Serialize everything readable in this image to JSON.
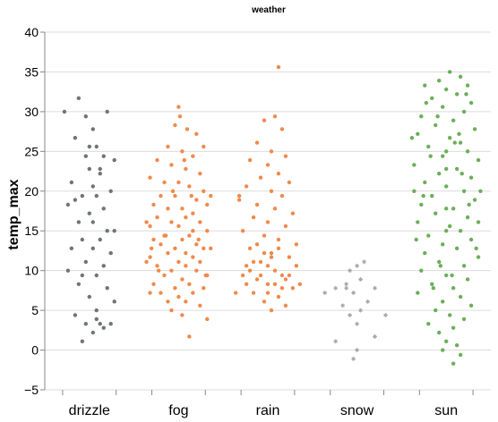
{
  "chart_data": {
    "type": "scatter",
    "title": "weather",
    "xlabel": "",
    "ylabel": "temp_max",
    "ylim": [
      -5,
      40
    ],
    "yticks": [
      -5,
      0,
      5,
      10,
      15,
      20,
      25,
      30,
      35,
      40
    ],
    "grid": true,
    "legend": "none",
    "categories": [
      "drizzle",
      "fog",
      "rain",
      "snow",
      "sun"
    ],
    "colors": {
      "drizzle": "#6e7672",
      "fog": "#f08a4b",
      "rain": "#f08a4b",
      "snow": "#a6a6a6",
      "sun": "#6cae5a"
    },
    "series": [
      {
        "category": "drizzle",
        "points": [
          [
            -0.35,
            30.0
          ],
          [
            -0.15,
            31.7
          ],
          [
            0.25,
            30.0
          ],
          [
            -0.2,
            26.7
          ],
          [
            0.1,
            25.6
          ],
          [
            0.35,
            23.9
          ],
          [
            0.2,
            24.4
          ],
          [
            -0.05,
            24.4
          ],
          [
            0.0,
            22.8
          ],
          [
            0.15,
            22.2
          ],
          [
            -0.25,
            21.1
          ],
          [
            0.05,
            20.6
          ],
          [
            0.3,
            20.0
          ],
          [
            -0.1,
            19.4
          ],
          [
            0.1,
            19.4
          ],
          [
            -0.3,
            18.3
          ],
          [
            0.2,
            17.8
          ],
          [
            0.0,
            17.2
          ],
          [
            -0.15,
            16.1
          ],
          [
            0.05,
            16.1
          ],
          [
            0.25,
            15.0
          ],
          [
            0.35,
            15.0
          ],
          [
            -0.1,
            13.9
          ],
          [
            0.15,
            13.9
          ],
          [
            -0.25,
            12.8
          ],
          [
            0.05,
            12.8
          ],
          [
            -0.05,
            11.1
          ],
          [
            0.2,
            10.6
          ],
          [
            -0.3,
            10.0
          ],
          [
            0.1,
            9.4
          ],
          [
            -0.15,
            8.3
          ],
          [
            0.25,
            7.8
          ],
          [
            0.0,
            6.7
          ],
          [
            0.35,
            6.1
          ],
          [
            -0.2,
            4.4
          ],
          [
            0.1,
            3.9
          ],
          [
            -0.05,
            3.3
          ],
          [
            0.15,
            3.3
          ],
          [
            0.3,
            3.3
          ],
          [
            0.05,
            2.2
          ],
          [
            -0.1,
            1.1
          ],
          [
            0.2,
            2.8
          ],
          [
            0.0,
            25.6
          ],
          [
            -0.05,
            29.4
          ],
          [
            0.05,
            27.8
          ],
          [
            0.15,
            22.8
          ],
          [
            -0.2,
            18.9
          ],
          [
            0.3,
            12.2
          ],
          [
            -0.1,
            9.4
          ],
          [
            0.1,
            5.0
          ]
        ]
      },
      {
        "category": "fog",
        "points": [
          [
            0.0,
            30.6
          ],
          [
            0.02,
            29.4
          ],
          [
            -0.05,
            28.3
          ],
          [
            0.12,
            27.8
          ],
          [
            0.25,
            27.2
          ],
          [
            0.35,
            25.6
          ],
          [
            -0.15,
            25.6
          ],
          [
            0.05,
            25.0
          ],
          [
            0.2,
            24.4
          ],
          [
            -0.3,
            23.9
          ],
          [
            -0.1,
            23.3
          ],
          [
            0.1,
            22.8
          ],
          [
            0.3,
            22.2
          ],
          [
            -0.4,
            21.7
          ],
          [
            -0.2,
            21.1
          ],
          [
            0.0,
            21.1
          ],
          [
            0.15,
            20.6
          ],
          [
            0.35,
            20.0
          ],
          [
            -0.25,
            19.4
          ],
          [
            -0.05,
            19.4
          ],
          [
            0.25,
            18.9
          ],
          [
            0.4,
            18.3
          ],
          [
            -0.35,
            18.3
          ],
          [
            -0.15,
            17.8
          ],
          [
            0.05,
            17.8
          ],
          [
            0.2,
            17.2
          ],
          [
            -0.3,
            16.7
          ],
          [
            0.1,
            16.7
          ],
          [
            0.3,
            16.1
          ],
          [
            -0.1,
            16.1
          ],
          [
            -0.4,
            15.6
          ],
          [
            0.0,
            15.6
          ],
          [
            0.2,
            15.0
          ],
          [
            0.4,
            15.0
          ],
          [
            -0.2,
            14.4
          ],
          [
            0.15,
            14.4
          ],
          [
            -0.35,
            13.9
          ],
          [
            0.05,
            13.9
          ],
          [
            0.25,
            13.3
          ],
          [
            -0.25,
            13.3
          ],
          [
            -0.05,
            12.8
          ],
          [
            0.35,
            12.8
          ],
          [
            0.1,
            12.2
          ],
          [
            -0.15,
            12.2
          ],
          [
            -0.4,
            11.7
          ],
          [
            0.2,
            11.7
          ],
          [
            0.0,
            11.1
          ],
          [
            0.3,
            11.1
          ],
          [
            -0.3,
            10.6
          ],
          [
            0.1,
            10.6
          ],
          [
            -0.1,
            10.0
          ],
          [
            0.25,
            10.0
          ],
          [
            0.4,
            9.4
          ],
          [
            -0.2,
            9.4
          ],
          [
            0.05,
            8.9
          ],
          [
            -0.35,
            8.3
          ],
          [
            0.15,
            8.3
          ],
          [
            0.35,
            7.8
          ],
          [
            -0.05,
            7.8
          ],
          [
            -0.25,
            7.2
          ],
          [
            0.2,
            7.2
          ],
          [
            0.0,
            6.7
          ],
          [
            -0.15,
            6.1
          ],
          [
            0.1,
            6.1
          ],
          [
            0.3,
            5.6
          ],
          [
            -0.1,
            5.0
          ],
          [
            0.05,
            4.4
          ],
          [
            0.4,
            3.9
          ],
          [
            0.15,
            1.7
          ],
          [
            -0.4,
            7.2
          ],
          [
            0.45,
            19.4
          ],
          [
            -0.45,
            11.1
          ],
          [
            0.45,
            12.8
          ],
          [
            -0.45,
            16.1
          ],
          [
            0.08,
            23.9
          ],
          [
            -0.08,
            20.0
          ],
          [
            0.18,
            19.4
          ],
          [
            -0.18,
            14.4
          ],
          [
            0.28,
            13.9
          ],
          [
            -0.28,
            10.0
          ],
          [
            0.38,
            9.4
          ],
          [
            -0.38,
            12.8
          ]
        ]
      },
      {
        "category": "rain",
        "points": [
          [
            0.15,
            35.6
          ],
          [
            0.1,
            29.4
          ],
          [
            -0.05,
            28.9
          ],
          [
            0.2,
            27.8
          ],
          [
            -0.15,
            26.1
          ],
          [
            0.05,
            25.0
          ],
          [
            0.25,
            24.4
          ],
          [
            -0.25,
            23.9
          ],
          [
            0.0,
            23.3
          ],
          [
            0.15,
            22.2
          ],
          [
            -0.1,
            21.7
          ],
          [
            0.3,
            21.1
          ],
          [
            -0.3,
            20.6
          ],
          [
            0.05,
            20.0
          ],
          [
            0.2,
            19.4
          ],
          [
            -0.4,
            18.9
          ],
          [
            -0.15,
            18.3
          ],
          [
            0.1,
            17.8
          ],
          [
            0.35,
            17.2
          ],
          [
            -0.2,
            16.7
          ],
          [
            0.0,
            16.1
          ],
          [
            0.25,
            15.6
          ],
          [
            -0.35,
            15.0
          ],
          [
            -0.05,
            14.4
          ],
          [
            0.15,
            13.9
          ],
          [
            0.4,
            13.3
          ],
          [
            -0.25,
            12.8
          ],
          [
            0.05,
            12.2
          ],
          [
            0.3,
            11.7
          ],
          [
            -0.1,
            11.1
          ],
          [
            -0.3,
            10.6
          ],
          [
            0.1,
            10.0
          ],
          [
            0.2,
            9.4
          ],
          [
            -0.15,
            8.9
          ],
          [
            0.0,
            8.3
          ],
          [
            0.35,
            7.8
          ],
          [
            -0.2,
            7.2
          ],
          [
            0.15,
            6.7
          ],
          [
            -0.05,
            6.1
          ],
          [
            0.25,
            5.6
          ],
          [
            0.05,
            5.0
          ],
          [
            -0.45,
            7.2
          ],
          [
            -0.4,
            19.4
          ],
          [
            0.45,
            8.3
          ],
          [
            -0.35,
            9.4
          ],
          [
            0.4,
            10.6
          ],
          [
            -0.3,
            8.3
          ],
          [
            0.3,
            9.4
          ],
          [
            -0.25,
            10.0
          ],
          [
            0.25,
            8.9
          ],
          [
            -0.2,
            11.1
          ],
          [
            0.2,
            7.8
          ],
          [
            -0.1,
            9.4
          ],
          [
            0.1,
            8.3
          ],
          [
            0.0,
            10.6
          ],
          [
            -0.05,
            12.2
          ],
          [
            0.05,
            11.7
          ],
          [
            0.15,
            12.8
          ],
          [
            -0.15,
            13.3
          ],
          [
            0.0,
            7.2
          ]
        ]
      },
      {
        "category": "snow",
        "points": [
          [
            0.1,
            11.1
          ],
          [
            0.0,
            10.6
          ],
          [
            -0.1,
            10.0
          ],
          [
            0.05,
            8.9
          ],
          [
            -0.15,
            8.3
          ],
          [
            -0.3,
            7.8
          ],
          [
            0.25,
            7.8
          ],
          [
            -0.05,
            7.2
          ],
          [
            -0.45,
            7.2
          ],
          [
            0.15,
            6.1
          ],
          [
            -0.2,
            5.6
          ],
          [
            0.05,
            5.0
          ],
          [
            -0.1,
            4.4
          ],
          [
            0.4,
            4.4
          ],
          [
            0.0,
            3.3
          ],
          [
            0.25,
            1.7
          ],
          [
            -0.3,
            1.1
          ],
          [
            0.0,
            0.0
          ],
          [
            -0.05,
            -1.1
          ],
          [
            -0.15,
            7.8
          ]
        ]
      },
      {
        "category": "sun",
        "points": [
          [
            0.05,
            35.0
          ],
          [
            0.2,
            34.4
          ],
          [
            -0.1,
            33.9
          ],
          [
            0.3,
            33.3
          ],
          [
            -0.3,
            33.3
          ],
          [
            0.0,
            32.8
          ],
          [
            0.15,
            32.2
          ],
          [
            -0.2,
            31.7
          ],
          [
            0.35,
            31.1
          ],
          [
            -0.05,
            30.6
          ],
          [
            0.25,
            30.0
          ],
          [
            -0.35,
            29.4
          ],
          [
            0.1,
            28.9
          ],
          [
            -0.15,
            28.3
          ],
          [
            0.4,
            27.8
          ],
          [
            -0.4,
            27.2
          ],
          [
            0.05,
            26.7
          ],
          [
            0.2,
            26.1
          ],
          [
            -0.25,
            25.6
          ],
          [
            0.3,
            25.0
          ],
          [
            -0.05,
            24.4
          ],
          [
            0.45,
            23.9
          ],
          [
            -0.45,
            23.3
          ],
          [
            0.15,
            22.8
          ],
          [
            -0.1,
            22.2
          ],
          [
            0.35,
            21.7
          ],
          [
            -0.3,
            21.1
          ],
          [
            0.0,
            20.6
          ],
          [
            0.25,
            20.0
          ],
          [
            -0.2,
            19.4
          ],
          [
            0.4,
            18.9
          ],
          [
            -0.35,
            18.3
          ],
          [
            0.1,
            17.8
          ],
          [
            -0.15,
            17.2
          ],
          [
            0.3,
            16.7
          ],
          [
            -0.4,
            16.1
          ],
          [
            0.05,
            15.6
          ],
          [
            0.2,
            15.0
          ],
          [
            -0.25,
            14.4
          ],
          [
            0.35,
            13.9
          ],
          [
            -0.05,
            13.3
          ],
          [
            0.15,
            12.8
          ],
          [
            -0.3,
            12.2
          ],
          [
            0.45,
            11.7
          ],
          [
            -0.1,
            11.1
          ],
          [
            0.25,
            10.6
          ],
          [
            -0.35,
            10.0
          ],
          [
            0.0,
            9.4
          ],
          [
            0.3,
            8.9
          ],
          [
            -0.2,
            8.3
          ],
          [
            0.1,
            7.8
          ],
          [
            -0.4,
            7.2
          ],
          [
            0.2,
            6.7
          ],
          [
            -0.05,
            6.1
          ],
          [
            0.35,
            5.6
          ],
          [
            -0.15,
            5.0
          ],
          [
            0.05,
            4.4
          ],
          [
            0.25,
            3.9
          ],
          [
            -0.25,
            3.3
          ],
          [
            0.1,
            2.8
          ],
          [
            -0.1,
            2.2
          ],
          [
            0.0,
            1.1
          ],
          [
            0.15,
            0.6
          ],
          [
            -0.05,
            0.0
          ],
          [
            0.2,
            -0.6
          ],
          [
            0.1,
            -1.7
          ],
          [
            -0.45,
            20.0
          ],
          [
            0.48,
            20.0
          ],
          [
            -0.48,
            26.7
          ],
          [
            0.45,
            16.1
          ],
          [
            -0.12,
            29.4
          ],
          [
            0.12,
            26.1
          ],
          [
            -0.22,
            24.4
          ],
          [
            0.22,
            22.2
          ],
          [
            -0.32,
            19.4
          ],
          [
            0.32,
            18.3
          ],
          [
            -0.42,
            13.9
          ],
          [
            0.42,
            12.8
          ],
          [
            -0.08,
            10.6
          ],
          [
            0.08,
            9.4
          ],
          [
            -0.18,
            7.8
          ],
          [
            0.18,
            27.2
          ],
          [
            -0.28,
            31.1
          ],
          [
            0.28,
            32.2
          ],
          [
            0.0,
            25.0
          ],
          [
            0.0,
            15.0
          ],
          [
            0.0,
            22.8
          ],
          [
            0.0,
            17.8
          ]
        ]
      }
    ]
  }
}
